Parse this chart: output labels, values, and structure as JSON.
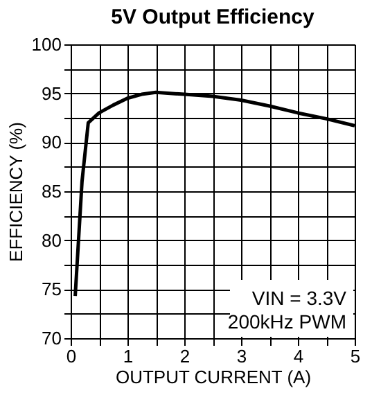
{
  "chart_data": {
    "type": "line",
    "title": "5V Output Efficiency",
    "xlabel": "OUTPUT CURRENT (A)",
    "ylabel": "EFFICIENCY (%)",
    "x": [
      0.08,
      0.2,
      0.31,
      0.5,
      0.75,
      1.0,
      1.25,
      1.5,
      2.0,
      2.5,
      3.0,
      3.5,
      4.0,
      4.5,
      5.0
    ],
    "series": [
      {
        "color": "#000000",
        "values": [
          74.3,
          86.0,
          92.0,
          93.0,
          93.8,
          94.5,
          94.9,
          95.1,
          94.9,
          94.7,
          94.3,
          93.7,
          93.0,
          92.4,
          91.7
        ]
      }
    ],
    "xlim": [
      0,
      5
    ],
    "ylim": [
      70,
      100
    ],
    "xticks": [
      0,
      {
        "value": 0.5,
        "label": null
      },
      1,
      {
        "value": 1.5,
        "label": null
      },
      2,
      {
        "value": 2.5,
        "label": null
      },
      3,
      {
        "value": 3.5,
        "label": null
      },
      4,
      {
        "value": 4.5,
        "label": null
      },
      5
    ],
    "yticks": [
      70,
      {
        "value": 72.5,
        "label": null
      },
      75,
      {
        "value": 77.5,
        "label": null
      },
      80,
      {
        "value": 82.5,
        "label": null
      },
      85,
      {
        "value": 87.5,
        "label": null
      },
      90,
      {
        "value": 92.5,
        "label": null
      },
      95,
      {
        "value": 97.5,
        "label": null
      },
      100
    ],
    "grid": true,
    "marker": "none",
    "line_style": "solid",
    "annotations": [
      "VIN = 3.3V",
      "200kHz PWM"
    ]
  }
}
